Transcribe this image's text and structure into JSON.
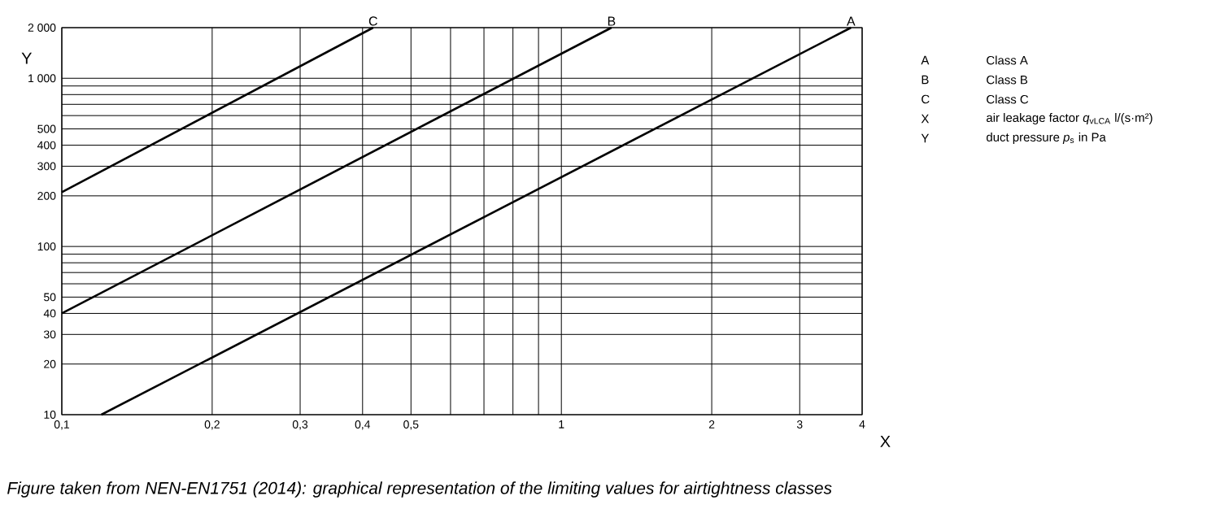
{
  "chart_data": {
    "type": "line",
    "xlabel": "X",
    "ylabel": "Y",
    "log": "xy",
    "grid": true,
    "xlim": [
      0.1,
      4
    ],
    "ylim": [
      10,
      2000
    ],
    "xticks": [
      {
        "value": 0.1,
        "label": "0,1"
      },
      {
        "value": 0.2,
        "label": "0,2"
      },
      {
        "value": 0.3,
        "label": "0,3"
      },
      {
        "value": 0.4,
        "label": "0,4"
      },
      {
        "value": 0.5,
        "label": "0,5"
      },
      {
        "value": 0.6,
        "label": null
      },
      {
        "value": 0.7,
        "label": null
      },
      {
        "value": 0.8,
        "label": null
      },
      {
        "value": 0.9,
        "label": null
      },
      1,
      2,
      3,
      4
    ],
    "yticks": [
      10,
      20,
      30,
      40,
      50,
      {
        "value": 60,
        "label": null
      },
      {
        "value": 70,
        "label": null
      },
      {
        "value": 80,
        "label": null
      },
      {
        "value": 90,
        "label": null
      },
      100,
      200,
      300,
      400,
      500,
      {
        "value": 600,
        "label": null
      },
      {
        "value": 700,
        "label": null
      },
      {
        "value": 800,
        "label": null
      },
      {
        "value": 900,
        "label": null
      },
      {
        "value": 1000,
        "label": "1 000"
      },
      {
        "value": 2000,
        "label": "2 000"
      }
    ],
    "series": [
      {
        "name": "A",
        "color": "#000000",
        "x": [
          0.12,
          3.8
        ],
        "values": [
          10,
          2000
        ]
      },
      {
        "name": "B",
        "color": "#000000",
        "x": [
          0.1,
          1.26
        ],
        "values": [
          40,
          2000
        ]
      },
      {
        "name": "C",
        "color": "#000000",
        "x": [
          0.1,
          0.42
        ],
        "values": [
          210,
          2000
        ]
      }
    ],
    "annotations": [
      "A",
      "Class A",
      "B",
      "Class B",
      "C",
      "Class C",
      "X",
      "air leakage factor *q*$_{vLCA}$ l/(s·m²)",
      "Y",
      "duct pressure *p*$_{s}$ in Pa",
      "*Figure taken from NEN-EN1751 (2014): graphical representation of the limiting values for airtightness classes*"
    ]
  }
}
